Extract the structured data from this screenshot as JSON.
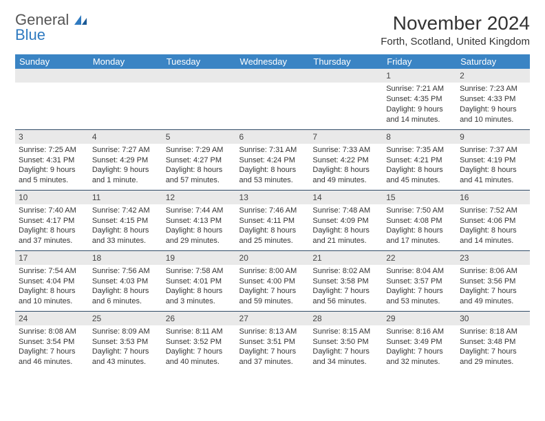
{
  "logo": {
    "part1": "General",
    "part2": "Blue"
  },
  "title": "November 2024",
  "location": "Forth, Scotland, United Kingdom",
  "colors": {
    "header_bg": "#3a84c4",
    "daynum_bg": "#e9e9e9",
    "border": "#2f4a66",
    "logo_blue": "#2f7ac0"
  },
  "weekdays": [
    "Sunday",
    "Monday",
    "Tuesday",
    "Wednesday",
    "Thursday",
    "Friday",
    "Saturday"
  ],
  "weeks": [
    [
      null,
      null,
      null,
      null,
      null,
      {
        "n": "1",
        "sr": "Sunrise: 7:21 AM",
        "ss": "Sunset: 4:35 PM",
        "dl1": "Daylight: 9 hours",
        "dl2": "and 14 minutes."
      },
      {
        "n": "2",
        "sr": "Sunrise: 7:23 AM",
        "ss": "Sunset: 4:33 PM",
        "dl1": "Daylight: 9 hours",
        "dl2": "and 10 minutes."
      }
    ],
    [
      {
        "n": "3",
        "sr": "Sunrise: 7:25 AM",
        "ss": "Sunset: 4:31 PM",
        "dl1": "Daylight: 9 hours",
        "dl2": "and 5 minutes."
      },
      {
        "n": "4",
        "sr": "Sunrise: 7:27 AM",
        "ss": "Sunset: 4:29 PM",
        "dl1": "Daylight: 9 hours",
        "dl2": "and 1 minute."
      },
      {
        "n": "5",
        "sr": "Sunrise: 7:29 AM",
        "ss": "Sunset: 4:27 PM",
        "dl1": "Daylight: 8 hours",
        "dl2": "and 57 minutes."
      },
      {
        "n": "6",
        "sr": "Sunrise: 7:31 AM",
        "ss": "Sunset: 4:24 PM",
        "dl1": "Daylight: 8 hours",
        "dl2": "and 53 minutes."
      },
      {
        "n": "7",
        "sr": "Sunrise: 7:33 AM",
        "ss": "Sunset: 4:22 PM",
        "dl1": "Daylight: 8 hours",
        "dl2": "and 49 minutes."
      },
      {
        "n": "8",
        "sr": "Sunrise: 7:35 AM",
        "ss": "Sunset: 4:21 PM",
        "dl1": "Daylight: 8 hours",
        "dl2": "and 45 minutes."
      },
      {
        "n": "9",
        "sr": "Sunrise: 7:37 AM",
        "ss": "Sunset: 4:19 PM",
        "dl1": "Daylight: 8 hours",
        "dl2": "and 41 minutes."
      }
    ],
    [
      {
        "n": "10",
        "sr": "Sunrise: 7:40 AM",
        "ss": "Sunset: 4:17 PM",
        "dl1": "Daylight: 8 hours",
        "dl2": "and 37 minutes."
      },
      {
        "n": "11",
        "sr": "Sunrise: 7:42 AM",
        "ss": "Sunset: 4:15 PM",
        "dl1": "Daylight: 8 hours",
        "dl2": "and 33 minutes."
      },
      {
        "n": "12",
        "sr": "Sunrise: 7:44 AM",
        "ss": "Sunset: 4:13 PM",
        "dl1": "Daylight: 8 hours",
        "dl2": "and 29 minutes."
      },
      {
        "n": "13",
        "sr": "Sunrise: 7:46 AM",
        "ss": "Sunset: 4:11 PM",
        "dl1": "Daylight: 8 hours",
        "dl2": "and 25 minutes."
      },
      {
        "n": "14",
        "sr": "Sunrise: 7:48 AM",
        "ss": "Sunset: 4:09 PM",
        "dl1": "Daylight: 8 hours",
        "dl2": "and 21 minutes."
      },
      {
        "n": "15",
        "sr": "Sunrise: 7:50 AM",
        "ss": "Sunset: 4:08 PM",
        "dl1": "Daylight: 8 hours",
        "dl2": "and 17 minutes."
      },
      {
        "n": "16",
        "sr": "Sunrise: 7:52 AM",
        "ss": "Sunset: 4:06 PM",
        "dl1": "Daylight: 8 hours",
        "dl2": "and 14 minutes."
      }
    ],
    [
      {
        "n": "17",
        "sr": "Sunrise: 7:54 AM",
        "ss": "Sunset: 4:04 PM",
        "dl1": "Daylight: 8 hours",
        "dl2": "and 10 minutes."
      },
      {
        "n": "18",
        "sr": "Sunrise: 7:56 AM",
        "ss": "Sunset: 4:03 PM",
        "dl1": "Daylight: 8 hours",
        "dl2": "and 6 minutes."
      },
      {
        "n": "19",
        "sr": "Sunrise: 7:58 AM",
        "ss": "Sunset: 4:01 PM",
        "dl1": "Daylight: 8 hours",
        "dl2": "and 3 minutes."
      },
      {
        "n": "20",
        "sr": "Sunrise: 8:00 AM",
        "ss": "Sunset: 4:00 PM",
        "dl1": "Daylight: 7 hours",
        "dl2": "and 59 minutes."
      },
      {
        "n": "21",
        "sr": "Sunrise: 8:02 AM",
        "ss": "Sunset: 3:58 PM",
        "dl1": "Daylight: 7 hours",
        "dl2": "and 56 minutes."
      },
      {
        "n": "22",
        "sr": "Sunrise: 8:04 AM",
        "ss": "Sunset: 3:57 PM",
        "dl1": "Daylight: 7 hours",
        "dl2": "and 53 minutes."
      },
      {
        "n": "23",
        "sr": "Sunrise: 8:06 AM",
        "ss": "Sunset: 3:56 PM",
        "dl1": "Daylight: 7 hours",
        "dl2": "and 49 minutes."
      }
    ],
    [
      {
        "n": "24",
        "sr": "Sunrise: 8:08 AM",
        "ss": "Sunset: 3:54 PM",
        "dl1": "Daylight: 7 hours",
        "dl2": "and 46 minutes."
      },
      {
        "n": "25",
        "sr": "Sunrise: 8:09 AM",
        "ss": "Sunset: 3:53 PM",
        "dl1": "Daylight: 7 hours",
        "dl2": "and 43 minutes."
      },
      {
        "n": "26",
        "sr": "Sunrise: 8:11 AM",
        "ss": "Sunset: 3:52 PM",
        "dl1": "Daylight: 7 hours",
        "dl2": "and 40 minutes."
      },
      {
        "n": "27",
        "sr": "Sunrise: 8:13 AM",
        "ss": "Sunset: 3:51 PM",
        "dl1": "Daylight: 7 hours",
        "dl2": "and 37 minutes."
      },
      {
        "n": "28",
        "sr": "Sunrise: 8:15 AM",
        "ss": "Sunset: 3:50 PM",
        "dl1": "Daylight: 7 hours",
        "dl2": "and 34 minutes."
      },
      {
        "n": "29",
        "sr": "Sunrise: 8:16 AM",
        "ss": "Sunset: 3:49 PM",
        "dl1": "Daylight: 7 hours",
        "dl2": "and 32 minutes."
      },
      {
        "n": "30",
        "sr": "Sunrise: 8:18 AM",
        "ss": "Sunset: 3:48 PM",
        "dl1": "Daylight: 7 hours",
        "dl2": "and 29 minutes."
      }
    ]
  ]
}
